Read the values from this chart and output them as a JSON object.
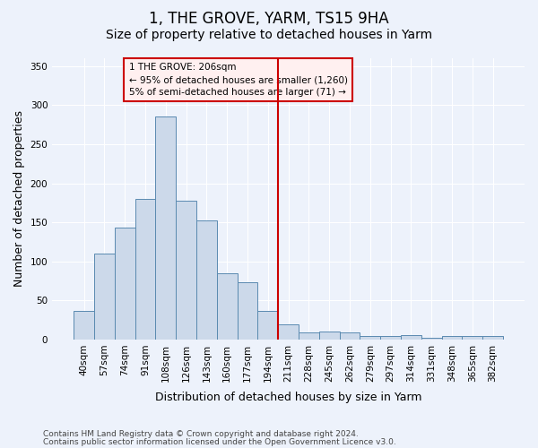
{
  "title": "1, THE GROVE, YARM, TS15 9HA",
  "subtitle": "Size of property relative to detached houses in Yarm",
  "xlabel": "Distribution of detached houses by size in Yarm",
  "ylabel": "Number of detached properties",
  "categories": [
    "40sqm",
    "57sqm",
    "74sqm",
    "91sqm",
    "108sqm",
    "126sqm",
    "143sqm",
    "160sqm",
    "177sqm",
    "194sqm",
    "211sqm",
    "228sqm",
    "245sqm",
    "262sqm",
    "279sqm",
    "297sqm",
    "314sqm",
    "331sqm",
    "348sqm",
    "365sqm",
    "382sqm"
  ],
  "values": [
    37,
    110,
    143,
    180,
    285,
    178,
    152,
    85,
    73,
    37,
    19,
    9,
    10,
    9,
    4,
    4,
    6,
    2,
    4,
    4,
    4
  ],
  "bar_color": "#ccd9ea",
  "bar_edge_color": "#5a8ab0",
  "vline_color": "#cc0000",
  "annotation_line1": "1 THE GROVE: 206sqm",
  "annotation_line2": "← 95% of detached houses are smaller (1,260)",
  "annotation_line3": "5% of semi-detached houses are larger (71) →",
  "annotation_box_facecolor": "#fff0f0",
  "annotation_box_edgecolor": "#cc0000",
  "ylim": [
    0,
    360
  ],
  "yticks": [
    0,
    50,
    100,
    150,
    200,
    250,
    300,
    350
  ],
  "background_color": "#edf2fb",
  "grid_color": "#ffffff",
  "footer_line1": "Contains HM Land Registry data © Crown copyright and database right 2024.",
  "footer_line2": "Contains public sector information licensed under the Open Government Licence v3.0.",
  "title_fontsize": 12,
  "subtitle_fontsize": 10,
  "ylabel_fontsize": 9,
  "xlabel_fontsize": 9,
  "tick_fontsize": 7.5,
  "annotation_fontsize": 7.5,
  "footer_fontsize": 6.5
}
